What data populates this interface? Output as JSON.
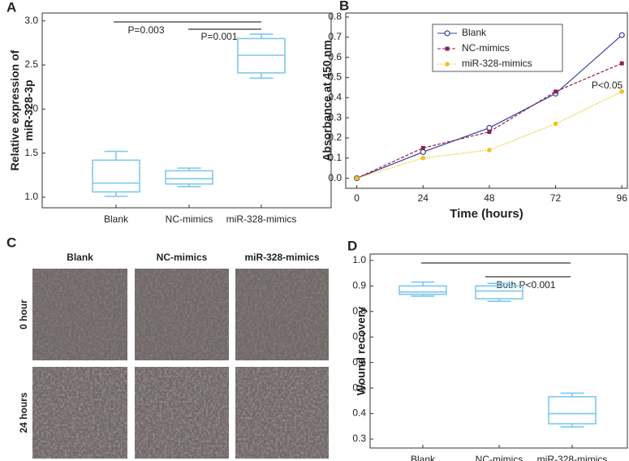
{
  "chart_data": [
    {
      "type": "box",
      "panel": "A",
      "ylabel": [
        "Relative expression of",
        "miR-328-3p"
      ],
      "categories": [
        "Blank",
        "NC-mimics",
        "miR-328-mimics"
      ],
      "boxes": [
        {
          "min": 1.01,
          "q1": 1.06,
          "median": 1.16,
          "q3": 1.42,
          "max": 1.52
        },
        {
          "min": 1.12,
          "q1": 1.15,
          "median": 1.21,
          "q3": 1.3,
          "max": 1.33
        },
        {
          "min": 2.35,
          "q1": 2.41,
          "median": 2.61,
          "q3": 2.8,
          "max": 2.85
        }
      ],
      "color": "#7ec8ec",
      "ylim": [
        0.88,
        3.09
      ],
      "yticks": [
        {
          "value": 1,
          "label": "1.0"
        },
        1.5,
        {
          "value": 2,
          "label": "2.0"
        },
        2.5,
        {
          "value": 3,
          "label": "3.0"
        }
      ],
      "annotations": [
        "P=0.003",
        "P=0.001"
      ]
    },
    {
      "type": "line",
      "panel": "B",
      "xlabel": "Time (hours)",
      "ylabel": "Absorbance at 450 nm",
      "x": [
        0,
        24,
        48,
        72,
        96
      ],
      "xlim": [
        -4,
        98
      ],
      "xticks": [
        0,
        24,
        48,
        72,
        96
      ],
      "ylim": [
        -0.05,
        0.82
      ],
      "yticks": [
        {
          "value": 0,
          "label": "0.0"
        },
        0.1,
        0.2,
        0.3,
        0.4,
        0.5,
        0.6,
        0.7,
        0.8
      ],
      "legend": "upper center",
      "series": [
        {
          "name": "Blank",
          "color": "#3b3b9e",
          "marker": "circle",
          "dash": "solid",
          "values": [
            0,
            0.13,
            0.25,
            0.42,
            0.71
          ]
        },
        {
          "name": "NC-mimics",
          "color": "#8b2252",
          "marker": "square",
          "dash": "dashed",
          "values": [
            0,
            0.15,
            0.23,
            0.43,
            0.57
          ]
        },
        {
          "name": "miR-328-mimics",
          "color": "#f2c21b",
          "marker": "dot",
          "dash": "dotted",
          "values": [
            0,
            0.1,
            0.14,
            0.27,
            0.43
          ]
        }
      ],
      "annotations": [
        "P<0.05"
      ]
    },
    {
      "type": "box",
      "panel": "D",
      "ylabel": [
        "Wound recovery"
      ],
      "categories": [
        "Blank",
        "NC-mimics",
        "miR-328-mimics"
      ],
      "boxes": [
        {
          "min": 0.86,
          "q1": 0.867,
          "median": 0.876,
          "q3": 0.9,
          "max": 0.915
        },
        {
          "min": 0.84,
          "q1": 0.85,
          "median": 0.88,
          "q3": 0.9,
          "max": 0.91
        },
        {
          "min": 0.348,
          "q1": 0.36,
          "median": 0.4,
          "q3": 0.466,
          "max": 0.48
        }
      ],
      "color": "#7ec8ec",
      "ylim": [
        0.265,
        1.025
      ],
      "yticks": [
        0.3,
        0.4,
        0.5,
        0.6,
        0.7,
        0.8,
        0.9,
        {
          "value": 1,
          "label": "1.0"
        }
      ],
      "annotations": [
        "Both P<0.001"
      ]
    }
  ],
  "panel_c": {
    "panel": "C",
    "columns": [
      "Blank",
      "NC-mimics",
      "miR-328-mimics"
    ],
    "rows": [
      "0 hour",
      "24 hours"
    ]
  }
}
